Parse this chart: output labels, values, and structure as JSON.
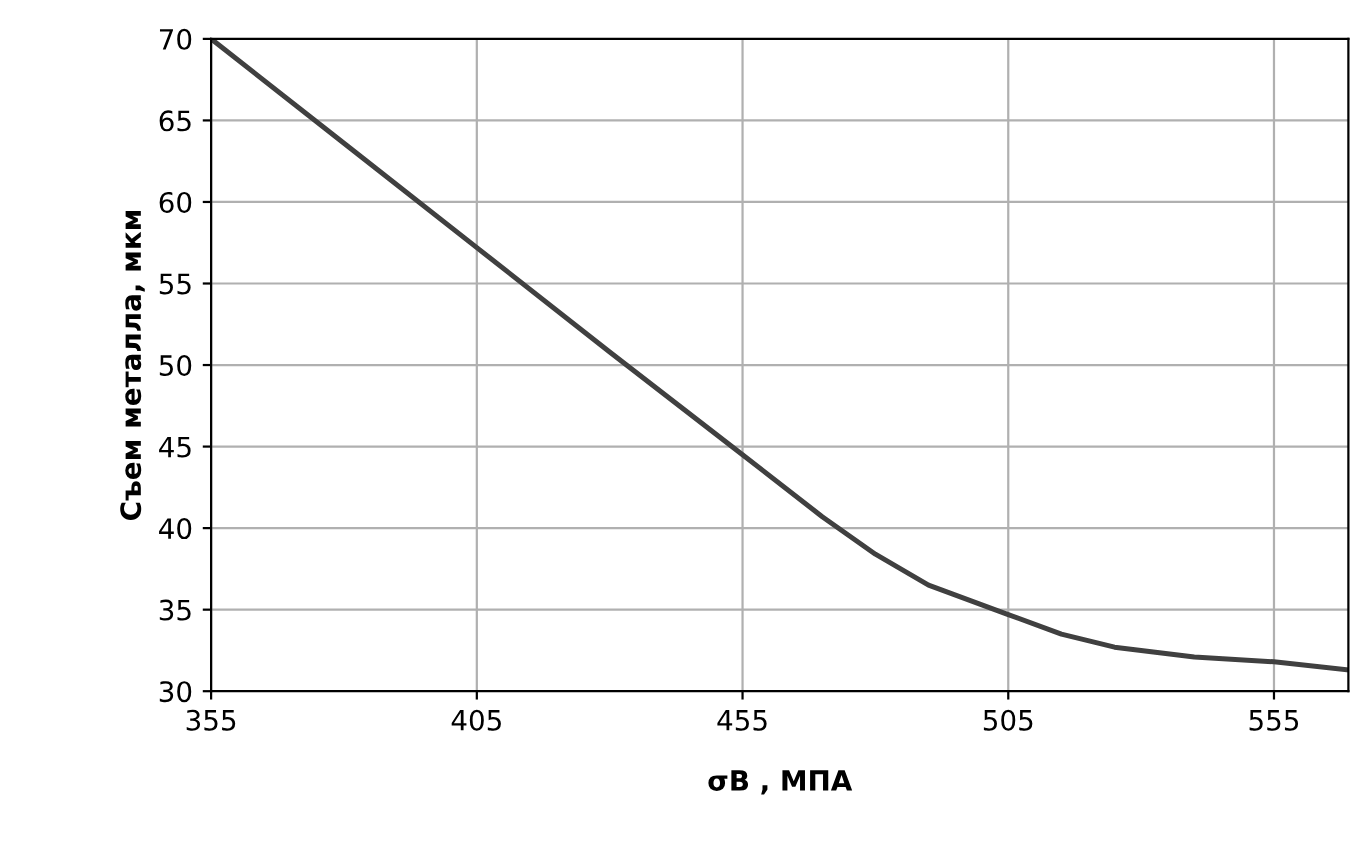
{
  "chart_data": {
    "type": "line",
    "xlabel": "σB , МПА",
    "ylabel": "Съем металла, мкм",
    "x": [
      355,
      380,
      405,
      430,
      455,
      470,
      480,
      490,
      505,
      515,
      525,
      540,
      555,
      569
    ],
    "series": [
      {
        "color": "#404040",
        "values": [
          70,
          63.6,
          57.2,
          50.8,
          44.5,
          40.7,
          38.4,
          36.5,
          34.7,
          33.5,
          32.7,
          32.1,
          31.8,
          31.3
        ]
      }
    ],
    "xlim": [
      355,
      569
    ],
    "xticks": [
      355,
      405,
      455,
      505,
      555
    ],
    "ylim": [
      30,
      70
    ],
    "yticks": [
      30,
      35,
      40,
      45,
      50,
      55,
      60,
      65,
      70
    ],
    "grid": true,
    "marker": "none",
    "line_style": "solid",
    "legend": false
  }
}
